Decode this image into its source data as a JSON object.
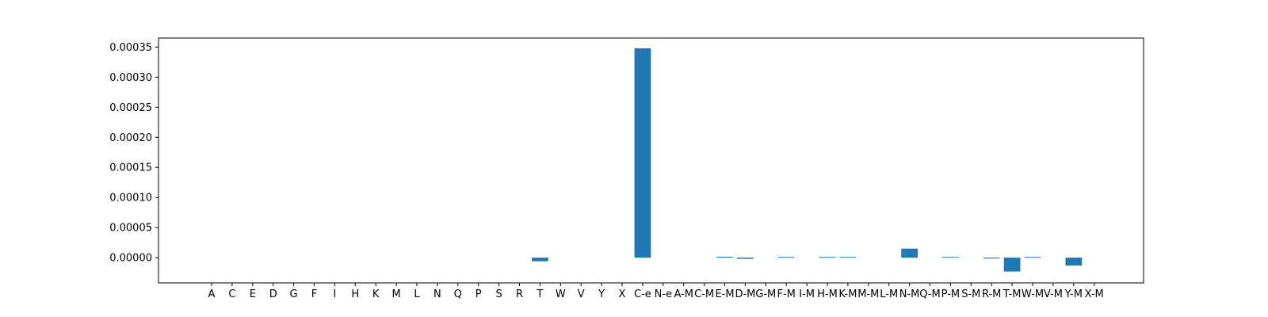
{
  "chart_data": {
    "type": "bar",
    "title": "",
    "xlabel": "",
    "ylabel": "",
    "color": "#1f77b4",
    "ylim": [
      -4.2e-05,
      0.000365
    ],
    "yticks": [
      "0.00000",
      "0.00005",
      "0.00010",
      "0.00015",
      "0.00020",
      "0.00025",
      "0.00030",
      "0.00035"
    ],
    "ytick_values": [
      0,
      5e-05,
      0.0001,
      0.00015,
      0.0002,
      0.00025,
      0.0003,
      0.00035
    ],
    "grid": false,
    "categories": [
      "A",
      "C",
      "E",
      "D",
      "G",
      "F",
      "I",
      "H",
      "K",
      "M",
      "L",
      "N",
      "Q",
      "P",
      "S",
      "R",
      "T",
      "W",
      "V",
      "Y",
      "X",
      "C-e",
      "N-e",
      "A-M",
      "C-M",
      "E-M",
      "D-M",
      "G-M",
      "F-M",
      "I-M",
      "H-M",
      "K-M",
      "M-M",
      "L-M",
      "N-M",
      "Q-M",
      "P-M",
      "S-M",
      "R-M",
      "T-M",
      "W-M",
      "V-M",
      "Y-M",
      "X-M"
    ],
    "values": [
      0,
      0,
      0,
      0,
      0,
      0,
      0,
      0,
      0,
      0,
      0,
      0,
      0,
      0,
      0,
      0,
      -6e-06,
      0,
      0,
      0,
      0,
      0.000348,
      0,
      0,
      0,
      1.5e-06,
      -2e-06,
      0,
      1.2e-06,
      0,
      1.2e-06,
      1.2e-06,
      0,
      0,
      1.5e-05,
      0,
      1.2e-06,
      0,
      -1.5e-06,
      -2.3e-05,
      1.2e-06,
      0,
      -1.3e-05,
      0
    ]
  }
}
